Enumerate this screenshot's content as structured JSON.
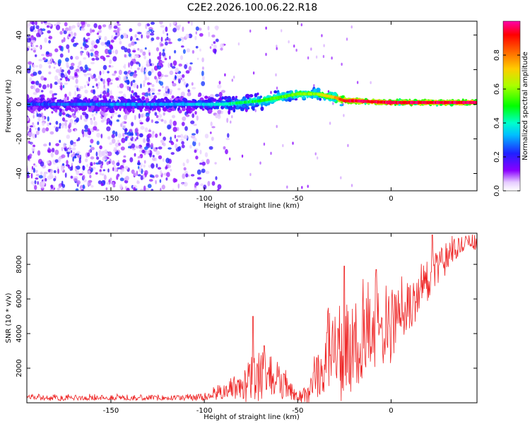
{
  "title": "C2E2.2026.100.06.22.R18",
  "colors": {
    "snr_line": "#ee2222",
    "bg": "#ffffff",
    "axis": "#000000"
  },
  "chart_data": [
    {
      "type": "heatmap",
      "name": "spectrogram",
      "xlabel": "Height of straight line (km)",
      "ylabel": "Frequency (Hz)",
      "xlim": [
        -195,
        46
      ],
      "ylim": [
        -50,
        48
      ],
      "xticks": [
        -150,
        -100,
        -50,
        0
      ],
      "yticks": [
        -40,
        -20,
        0,
        20,
        40
      ],
      "colorbar": {
        "label": "Normalized spectral amplitude",
        "range": [
          0.0,
          1.0
        ],
        "ticks": [
          0.0,
          0.2,
          0.4,
          0.6,
          0.8
        ],
        "colormap": "rainbow (white-violet-blue-cyan-green-yellow-orange-red-magenta)"
      },
      "ridge": {
        "description": "signal tone frequency vs height",
        "x": [
          -195,
          -150,
          -120,
          -100,
          -90,
          -80,
          -70,
          -60,
          -55,
          -50,
          -40,
          -30,
          -25,
          -20,
          -10,
          0,
          10,
          20,
          30,
          46
        ],
        "freq": [
          0,
          0,
          0,
          0,
          0,
          1,
          2,
          4,
          5,
          6,
          6,
          4,
          2,
          2,
          1.5,
          1,
          1,
          1,
          1,
          1
        ],
        "amplitude": [
          0.25,
          0.3,
          0.3,
          0.35,
          0.4,
          0.45,
          0.5,
          0.55,
          0.55,
          0.6,
          0.6,
          0.75,
          0.9,
          0.95,
          0.95,
          0.95,
          0.95,
          0.95,
          0.95,
          0.95
        ]
      },
      "noise_edge_x": -95
    },
    {
      "type": "line",
      "name": "snr",
      "xlabel": "Height of straight line (km)",
      "ylabel": "SNR (10 * v/v)",
      "xlim": [
        -195,
        46
      ],
      "ylim": [
        0,
        9800
      ],
      "xticks": [
        -150,
        -100,
        -50,
        0
      ],
      "yticks": [
        2000,
        4000,
        6000,
        8000
      ],
      "envelope": {
        "x": [
          -195,
          -150,
          -110,
          -100,
          -95,
          -90,
          -80,
          -75,
          -70,
          -65,
          -60,
          -55,
          -50,
          -45,
          -40,
          -35,
          -30,
          -25,
          -20,
          -15,
          -10,
          -5,
          0,
          5,
          10,
          15,
          20,
          25,
          30,
          35,
          40,
          46
        ],
        "mean": [
          300,
          300,
          300,
          350,
          500,
          600,
          1000,
          1300,
          1600,
          1500,
          1300,
          800,
          300,
          500,
          1500,
          2500,
          3000,
          3200,
          3500,
          3800,
          4000,
          4200,
          4500,
          5000,
          5500,
          6500,
          7000,
          7800,
          8500,
          9000,
          9200,
          9300
        ],
        "amp": [
          150,
          150,
          150,
          200,
          300,
          400,
          700,
          1200,
          1500,
          1000,
          900,
          600,
          200,
          500,
          1200,
          2000,
          2500,
          2600,
          2500,
          2400,
          2300,
          2200,
          2000,
          1800,
          1500,
          1300,
          1200,
          1000,
          800,
          600,
          500,
          400
        ]
      },
      "spikes": [
        {
          "x": -74,
          "y": 5000
        },
        {
          "x": -68,
          "y": 3300
        },
        {
          "x": -25,
          "y": 7900
        },
        {
          "x": -8,
          "y": 7700
        },
        {
          "x": 22,
          "y": 9700
        }
      ]
    }
  ]
}
